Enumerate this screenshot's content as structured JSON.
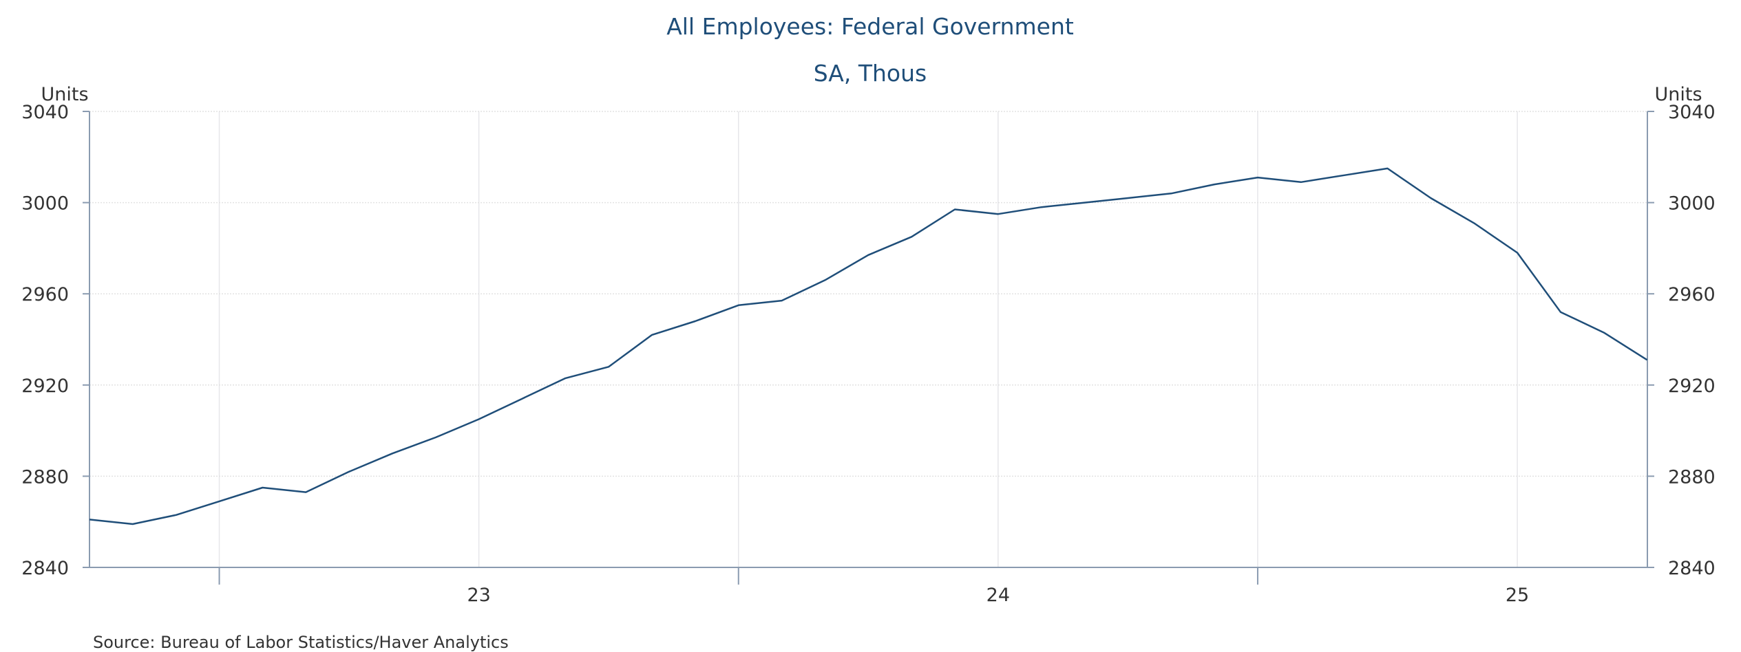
{
  "chart_data": {
    "type": "line",
    "title": "All Employees: Federal Government",
    "subtitle": "SA, Thous",
    "ylabel_left": "Units",
    "ylabel_right": "Units",
    "source": "Source:  Bureau of Labor Statistics/Haver Analytics",
    "ylim": [
      2840,
      3040
    ],
    "y_ticks": [
      2840,
      2880,
      2920,
      2960,
      3000,
      3040
    ],
    "x_tick_labels": [
      "23",
      "24",
      "25"
    ],
    "grid": true,
    "legend": "none",
    "series": [
      {
        "x": [
          "2022-03",
          "2022-04",
          "2022-05",
          "2022-06",
          "2022-07",
          "2022-08",
          "2022-09",
          "2022-10",
          "2022-11",
          "2022-12",
          "2023-01",
          "2023-02",
          "2023-03",
          "2023-04",
          "2023-05",
          "2023-06",
          "2023-07",
          "2023-08",
          "2023-09",
          "2023-10",
          "2023-11",
          "2023-12",
          "2024-01",
          "2024-02",
          "2024-03",
          "2024-04",
          "2024-05",
          "2024-06",
          "2024-07",
          "2024-08",
          "2024-09",
          "2024-10",
          "2024-11",
          "2024-12",
          "2025-01",
          "2025-02",
          "2025-03"
        ],
        "values": [
          2861,
          2859,
          2863,
          2869,
          2875,
          2873,
          2882,
          2890,
          2897,
          2905,
          2914,
          2923,
          2928,
          2942,
          2948,
          2955,
          2957,
          2966,
          2977,
          2985,
          2997,
          2995,
          2998,
          3000,
          3002,
          3004,
          3008,
          3011,
          3009,
          3012,
          3015,
          3002,
          2991,
          2978,
          2952,
          2943,
          2931
        ],
        "color": "#1f4e79"
      }
    ]
  }
}
